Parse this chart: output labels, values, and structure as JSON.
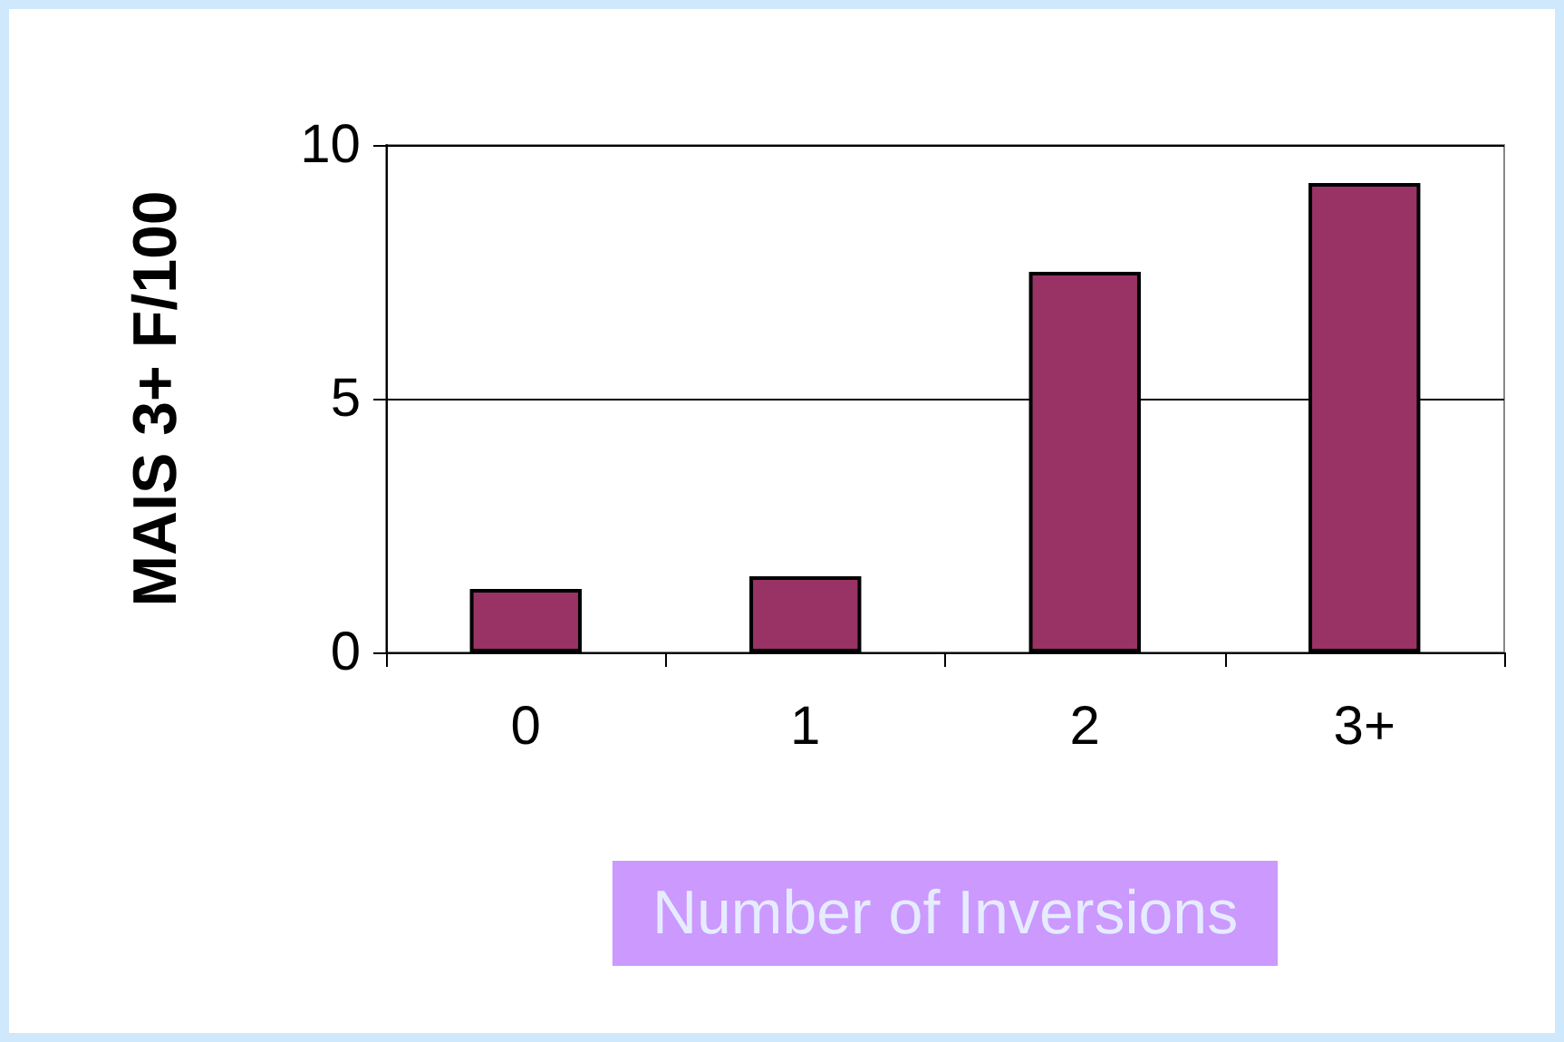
{
  "chart_data": {
    "type": "bar",
    "xlabel": "Number of Inversions",
    "ylabel": "MAIS 3+ F/100",
    "categories": [
      "0",
      "1",
      "2",
      "3+"
    ],
    "values": [
      1.25,
      1.5,
      7.5,
      9.25
    ],
    "color": "#993366",
    "ylim": [
      0,
      10
    ],
    "yticks": [
      0,
      5,
      10
    ],
    "grid": "y"
  }
}
